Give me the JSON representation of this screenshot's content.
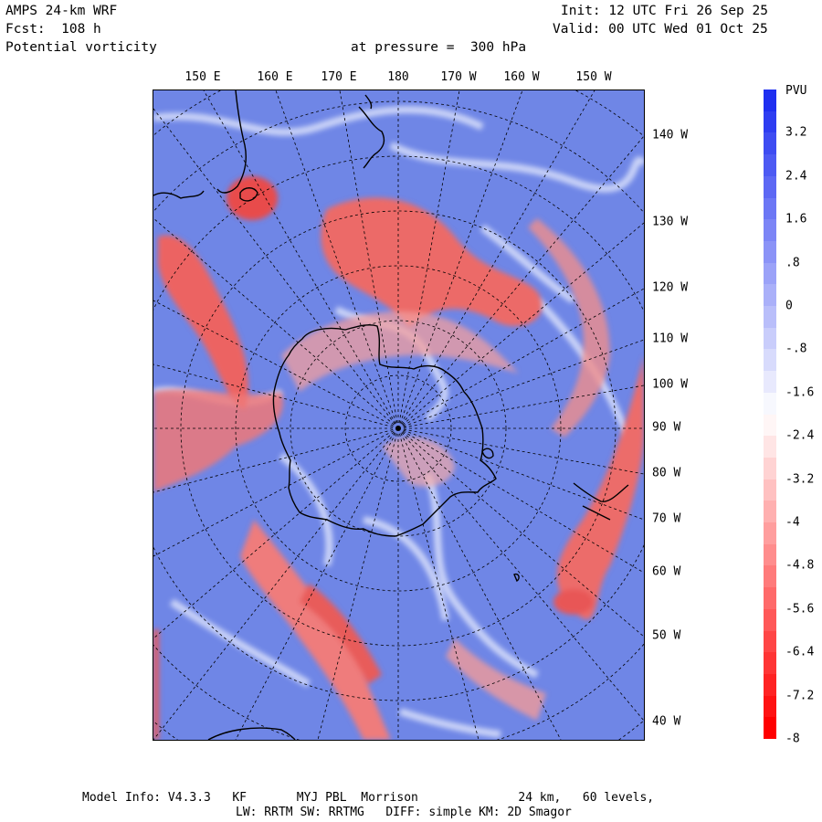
{
  "header": {
    "model": "AMPS 24-km WRF",
    "forecast": "Fcst:  108 h",
    "field": "Potential vorticity",
    "pressure": "at pressure =  300 hPa",
    "init": "Init: 12 UTC Fri 26 Sep 25",
    "valid": "Valid: 00 UTC Wed 01 Oct 25"
  },
  "top_lon_labels": [
    "150 E",
    "160 E",
    "170 E",
    "180",
    "170 W",
    "160 W",
    "150 W"
  ],
  "right_lon_labels": [
    "140 W",
    "130 W",
    "120 W",
    "110 W",
    "100 W",
    "90 W",
    "80 W",
    "70 W",
    "60 W",
    "50 W",
    "40 W"
  ],
  "colorbar": {
    "unit": "PVU",
    "labels": [
      "3.2",
      "2.4",
      "1.6",
      ".8",
      "0",
      "-.8",
      "-1.6",
      "-2.4",
      "-3.2",
      "-4",
      "-4.8",
      "-5.6",
      "-6.4",
      "-7.2",
      "-8"
    ],
    "top_color": "#1f2ff0",
    "mid_color": "#ffffff",
    "bottom_color": "#ff0000",
    "scale_max": 4.0,
    "scale_min": -8.0
  },
  "footer": {
    "line1": "Model Info: V4.3.3   KF       MYJ PBL  Morrison              24 km,   60 levels,",
    "line2": "LW: RRTM SW: RRTMG   DIFF: simple KM: 2D Smagor"
  },
  "colors": {
    "background_blue": "#6f86e6",
    "negative_red": "#e8504f",
    "coastline": "#000000"
  }
}
